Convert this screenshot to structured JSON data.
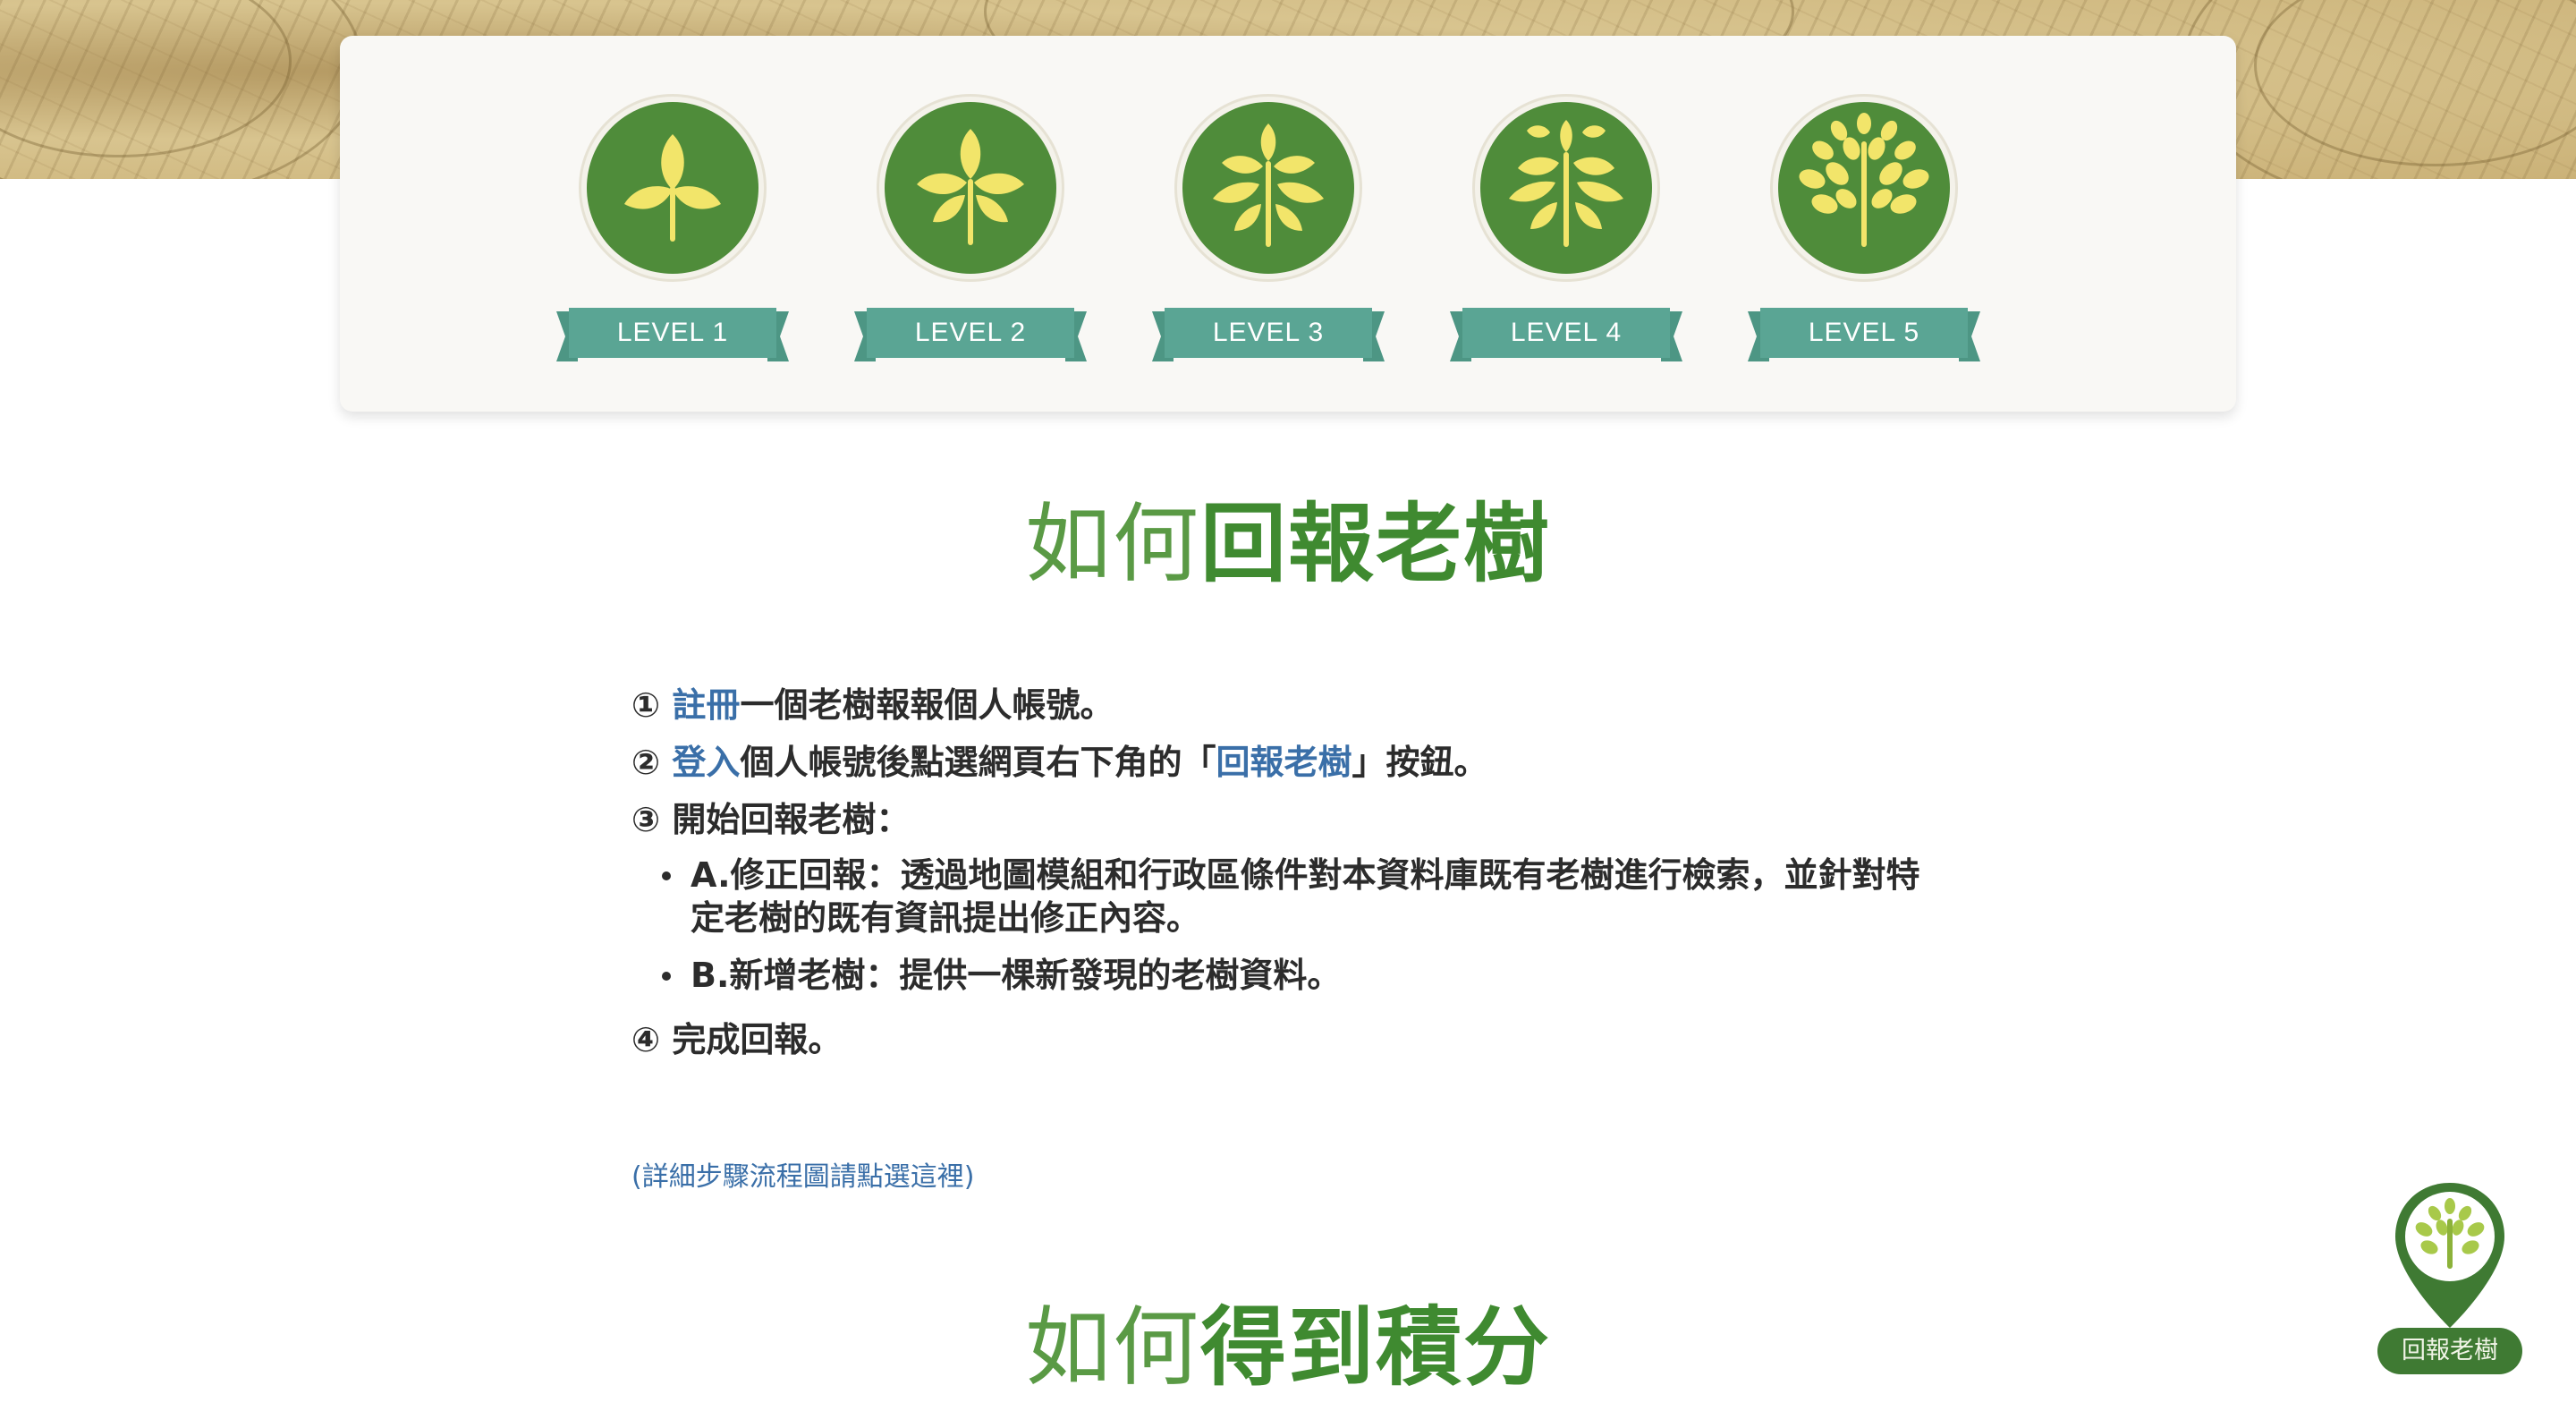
{
  "colors": {
    "primary_green": "#3f8a30",
    "ribbon_teal": "#5aa594",
    "link_blue": "#3a6fa8",
    "leaf_yellow": "#f2e56a",
    "badge_green": "#4f8c3a"
  },
  "levels": [
    {
      "label": "LEVEL 1",
      "icon": "tree-level-1-icon"
    },
    {
      "label": "LEVEL 2",
      "icon": "tree-level-2-icon"
    },
    {
      "label": "LEVEL 3",
      "icon": "tree-level-3-icon"
    },
    {
      "label": "LEVEL 4",
      "icon": "tree-level-4-icon"
    },
    {
      "label": "LEVEL 5",
      "icon": "tree-level-5-icon"
    }
  ],
  "report_section": {
    "title_light": "如何",
    "title_bold": "回報老樹",
    "steps": {
      "s1_num": "①",
      "s1_link": "註冊",
      "s1_text": "一個老樹報報個人帳號。",
      "s2_num": "②",
      "s2_link": "登入",
      "s2_text_a": "個人帳號後點選網頁右下角的「",
      "s2_link2": "回報老樹",
      "s2_text_b": "」按鈕。",
      "s3_num": "③",
      "s3_text": "開始回報老樹：",
      "s3_bullet_a": "A.修正回報：透過地圖模組和行政區條件對本資料庫既有老樹進行檢索，並針對特定老樹的既有資訊提出修正內容。",
      "s3_bullet_b": "B.新增老樹：提供一棵新發現的老樹資料。",
      "s4_num": "④",
      "s4_text": "完成回報。"
    },
    "detail_link": "(詳細步驟流程圖請點選這裡)"
  },
  "points_section": {
    "title_light": "如何",
    "title_bold": "得到積分"
  },
  "floating_button": {
    "label": "回報老樹",
    "icon": "tree-pin-icon"
  }
}
